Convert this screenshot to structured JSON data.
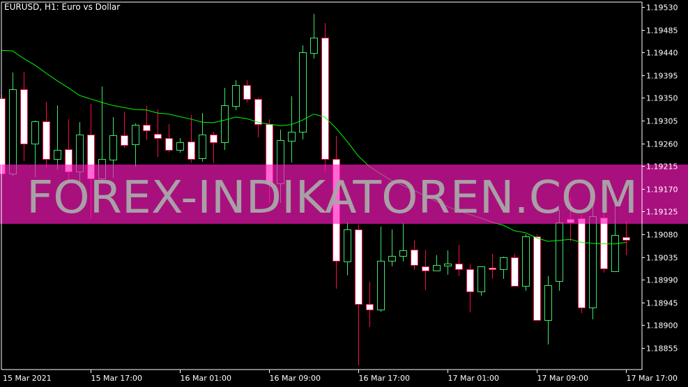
{
  "header": {
    "title": "EURUSD, H1:  Euro vs  Dollar"
  },
  "watermark": {
    "text": "FOREX-INDIKATOREN.COM",
    "band_color": "#a8107e",
    "text_color": "#a8a8a8"
  },
  "colors": {
    "background": "#000000",
    "bull_border": "#3ee86a",
    "bear_border": "#ff0a4a",
    "bear_fill": "#ffffff",
    "bull_fill": "#000000",
    "ma_line": "#00ff00",
    "axis": "#ffffff"
  },
  "chart_data": {
    "type": "candlestick",
    "symbol": "EURUSD",
    "timeframe": "H1",
    "ylim": [
      1.1882,
      1.1954
    ],
    "y_ticks": [
      "1.19530",
      "1.19485",
      "1.19440",
      "1.19395",
      "1.19350",
      "1.19305",
      "1.19260",
      "1.19215",
      "1.19170",
      "1.19125",
      "1.19080",
      "1.19035",
      "1.18990",
      "1.18945",
      "1.18900",
      "1.18855"
    ],
    "x_ticks": [
      {
        "label": "15 Mar 2021",
        "index": 0
      },
      {
        "label": "15 Mar 17:00",
        "index": 8
      },
      {
        "label": "16 Mar 01:00",
        "index": 16
      },
      {
        "label": "16 Mar 09:00",
        "index": 24
      },
      {
        "label": "16 Mar 17:00",
        "index": 32
      },
      {
        "label": "17 Mar 01:00",
        "index": 40
      },
      {
        "label": "17 Mar 09:00",
        "index": 48
      },
      {
        "label": "17 Mar 17:00",
        "index": 56
      }
    ],
    "ohlc": [
      [
        1.19349,
        1.19356,
        1.19197,
        1.192
      ],
      [
        1.192,
        1.194,
        1.19196,
        1.19367
      ],
      [
        1.19367,
        1.19402,
        1.19225,
        1.1926
      ],
      [
        1.1926,
        1.19305,
        1.19193,
        1.19304
      ],
      [
        1.19304,
        1.19342,
        1.19211,
        1.19229
      ],
      [
        1.19229,
        1.19335,
        1.19208,
        1.19247
      ],
      [
        1.19249,
        1.19308,
        1.19181,
        1.19204
      ],
      [
        1.19204,
        1.19302,
        1.19181,
        1.19277
      ],
      [
        1.19277,
        1.19338,
        1.19112,
        1.19191
      ],
      [
        1.19191,
        1.19373,
        1.19181,
        1.19229
      ],
      [
        1.19228,
        1.19312,
        1.19192,
        1.19276
      ],
      [
        1.19276,
        1.19323,
        1.19251,
        1.19257
      ],
      [
        1.19258,
        1.193,
        1.19214,
        1.19297
      ],
      [
        1.19297,
        1.19334,
        1.19266,
        1.19286
      ],
      [
        1.19279,
        1.19327,
        1.19233,
        1.19271
      ],
      [
        1.19271,
        1.19298,
        1.19243,
        1.19247
      ],
      [
        1.19247,
        1.19271,
        1.19242,
        1.19262
      ],
      [
        1.19264,
        1.19316,
        1.19222,
        1.19229
      ],
      [
        1.19231,
        1.1932,
        1.19224,
        1.19277
      ],
      [
        1.19277,
        1.19283,
        1.19221,
        1.19262
      ],
      [
        1.19262,
        1.1937,
        1.19247,
        1.19335
      ],
      [
        1.19334,
        1.19385,
        1.19326,
        1.19375
      ],
      [
        1.19375,
        1.19385,
        1.19341,
        1.19348
      ],
      [
        1.19348,
        1.19351,
        1.19272,
        1.19298
      ],
      [
        1.19298,
        1.19308,
        1.19142,
        1.19181
      ],
      [
        1.19181,
        1.19287,
        1.19142,
        1.19266
      ],
      [
        1.19265,
        1.19353,
        1.19222,
        1.19283
      ],
      [
        1.19283,
        1.19454,
        1.19268,
        1.1944
      ],
      [
        1.19439,
        1.19516,
        1.19428,
        1.19469
      ],
      [
        1.19469,
        1.19498,
        1.19204,
        1.19229
      ],
      [
        1.19229,
        1.19275,
        1.18973,
        1.19028
      ],
      [
        1.19026,
        1.19104,
        1.18999,
        1.1909
      ],
      [
        1.1909,
        1.19099,
        1.18821,
        1.18942
      ],
      [
        1.18942,
        1.18986,
        1.18897,
        1.18931
      ],
      [
        1.18931,
        1.19095,
        1.18927,
        1.19028
      ],
      [
        1.19028,
        1.1909,
        1.19017,
        1.19037
      ],
      [
        1.19037,
        1.19102,
        1.19026,
        1.19048
      ],
      [
        1.1905,
        1.19068,
        1.1901,
        1.19019
      ],
      [
        1.19017,
        1.1905,
        1.1897,
        1.19008
      ],
      [
        1.19008,
        1.19039,
        1.19008,
        1.19019
      ],
      [
        1.19018,
        1.19048,
        1.19,
        1.19022
      ],
      [
        1.19022,
        1.19059,
        1.18997,
        1.19011
      ],
      [
        1.19011,
        1.19021,
        1.18926,
        1.18967
      ],
      [
        1.18967,
        1.19017,
        1.18959,
        1.19017
      ],
      [
        1.19014,
        1.19042,
        1.18992,
        1.19011
      ],
      [
        1.19011,
        1.19036,
        1.18992,
        1.19035
      ],
      [
        1.19035,
        1.19042,
        1.18978,
        1.18978
      ],
      [
        1.18978,
        1.1908,
        1.18968,
        1.19076
      ],
      [
        1.19076,
        1.1908,
        1.18909,
        1.1891
      ],
      [
        1.1891,
        1.18997,
        1.18862,
        1.18979
      ],
      [
        1.18988,
        1.19128,
        1.18968,
        1.19104
      ],
      [
        1.19111,
        1.19153,
        1.19066,
        1.19104
      ],
      [
        1.19112,
        1.19119,
        1.18924,
        1.18935
      ],
      [
        1.18935,
        1.19142,
        1.18912,
        1.19116
      ],
      [
        1.19113,
        1.19128,
        1.19004,
        1.19013
      ],
      [
        1.19007,
        1.19142,
        1.19007,
        1.19079
      ],
      [
        1.19075,
        1.19106,
        1.19039,
        1.19069
      ]
    ],
    "ma": [
      1.19444,
      1.19443,
      1.19428,
      1.19415,
      1.19399,
      1.19384,
      1.1937,
      1.19355,
      1.19348,
      1.19341,
      1.19335,
      1.19331,
      1.19327,
      1.19326,
      1.1932,
      1.19318,
      1.19313,
      1.19308,
      1.19302,
      1.19301,
      1.19306,
      1.19312,
      1.19309,
      1.19302,
      1.19298,
      1.19295,
      1.19297,
      1.19306,
      1.19318,
      1.19312,
      1.1929,
      1.19264,
      1.19235,
      1.19214,
      1.192,
      1.19186,
      1.19177,
      1.19167,
      1.19156,
      1.19145,
      1.19135,
      1.19126,
      1.19119,
      1.19112,
      1.19104,
      1.19098,
      1.19087,
      1.19083,
      1.19073,
      1.19066,
      1.19068,
      1.1907,
      1.19064,
      1.19062,
      1.19061,
      1.19061,
      1.19064
    ]
  }
}
